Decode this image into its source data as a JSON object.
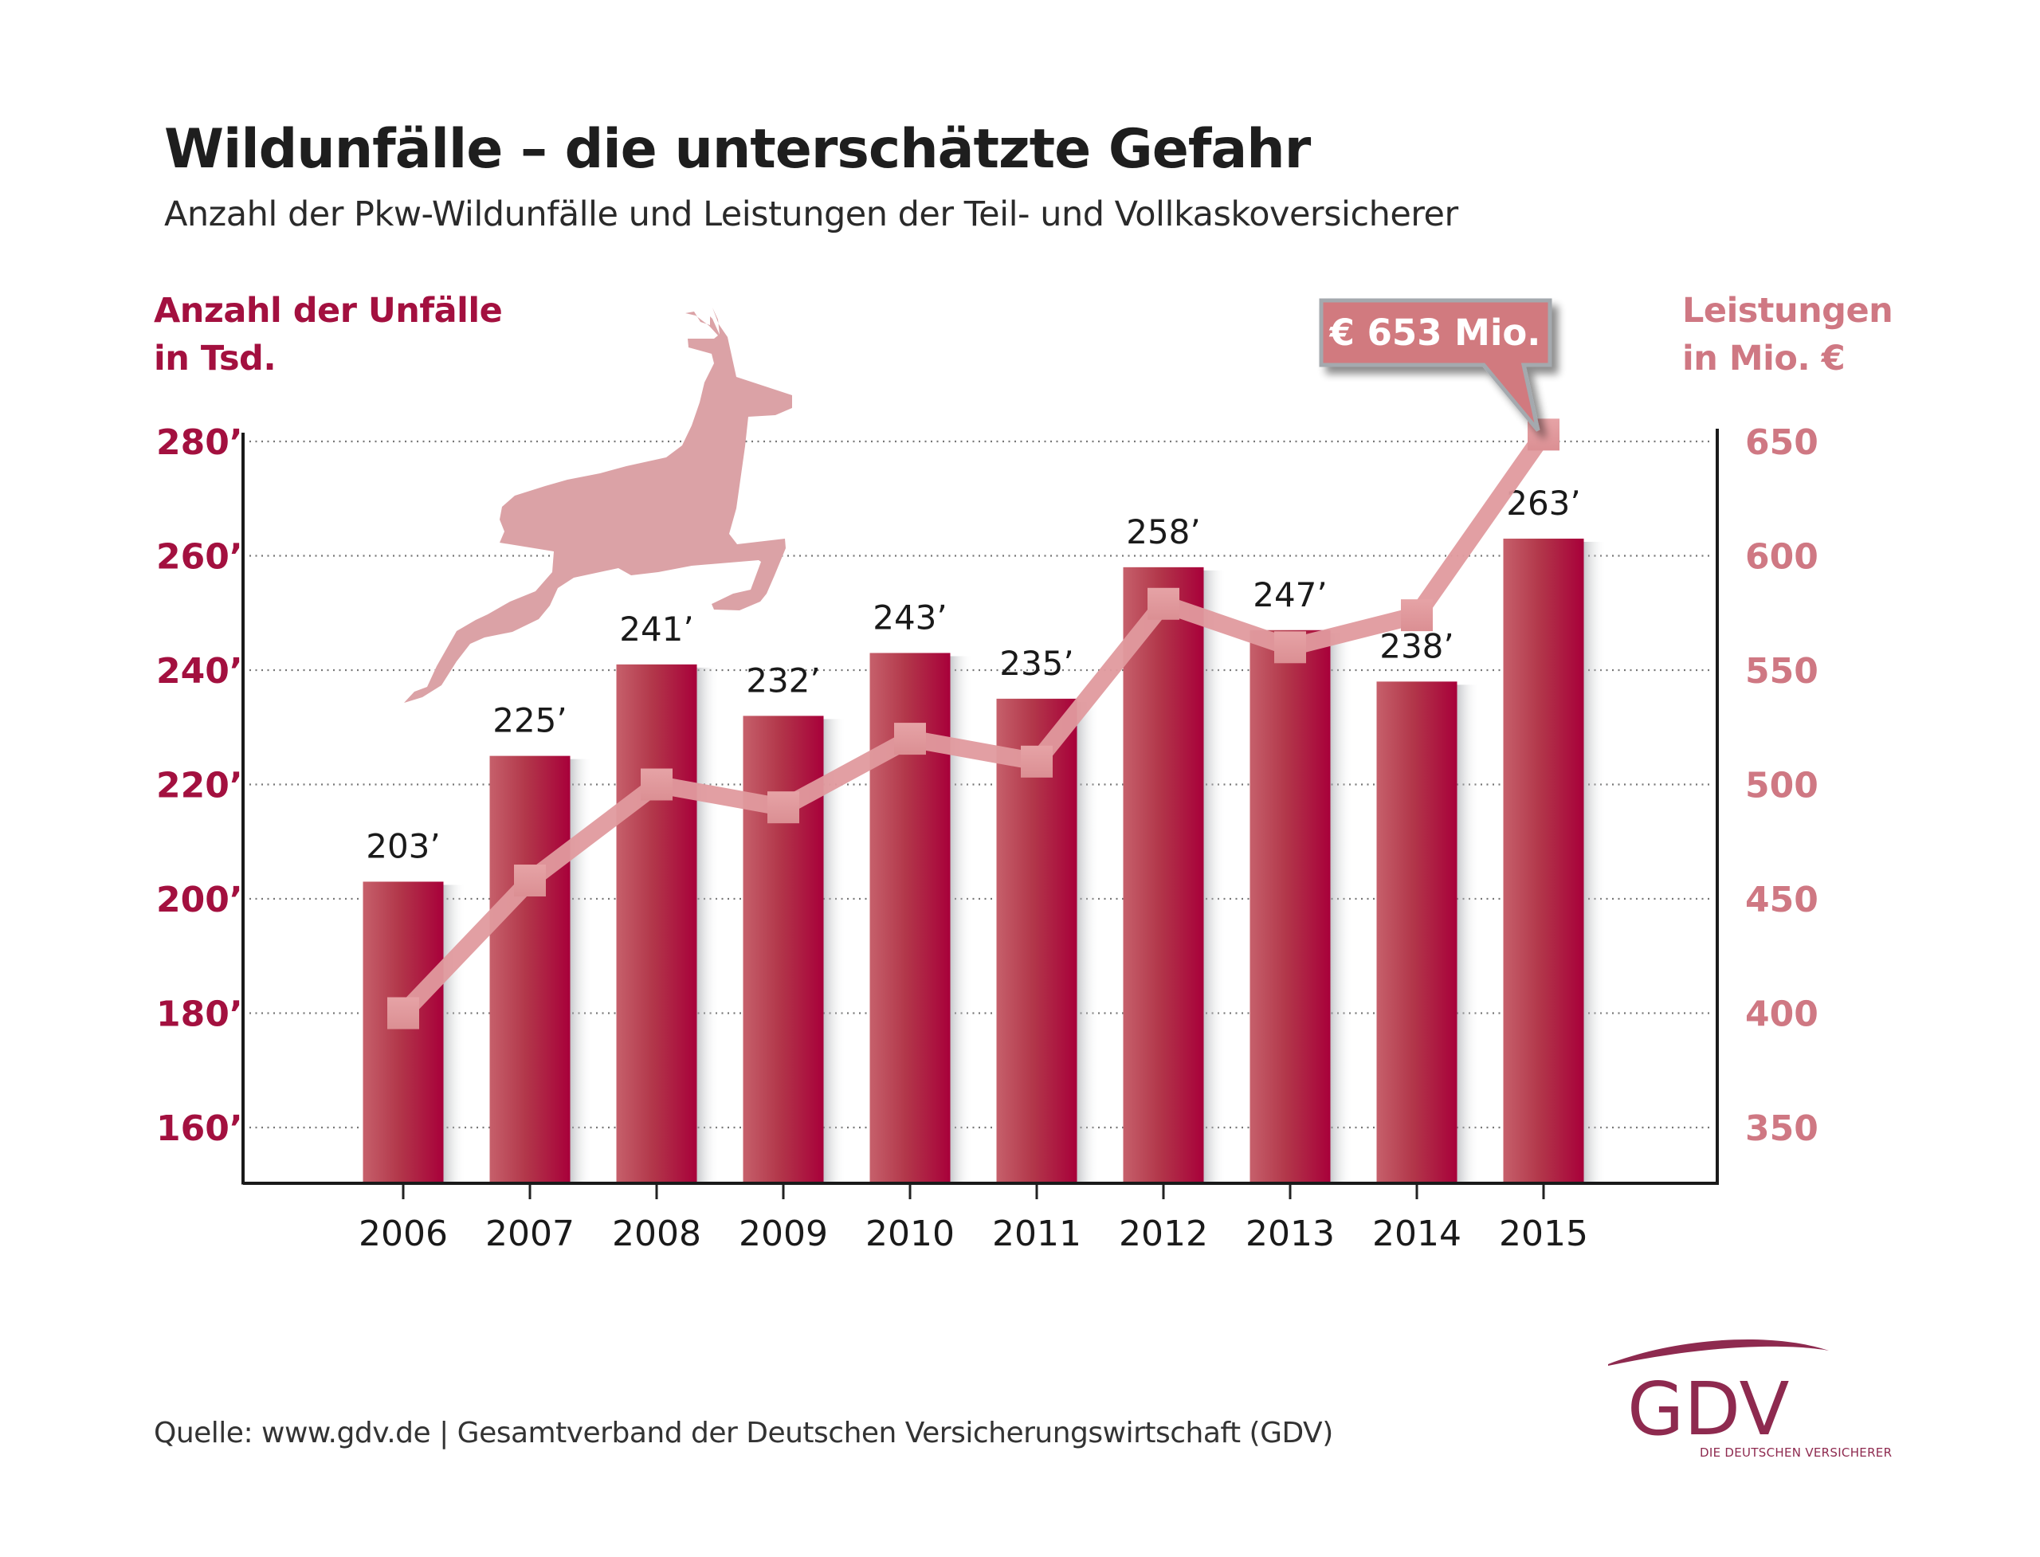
{
  "header": {
    "title": "Wildunfälle – die unterschätzte Gefahr",
    "subtitle": "Anzahl der Pkw-Wildunfälle und Leistungen der Teil- und Vollkaskoversicherer"
  },
  "axis_labels": {
    "left_line1": "Anzahl der Unfälle",
    "left_line2": "in Tsd.",
    "right_line1": "Leistungen",
    "right_line2": "in Mio. €"
  },
  "callout": {
    "text": "€ 653 Mio.",
    "year": "2015"
  },
  "source": "Quelle: www.gdv.de | Gesamtverband der Deutschen Versicherungswirtschaft (GDV)",
  "logo": {
    "name": "GDV",
    "tagline": "DIE DEUTSCHEN VERSICHERER"
  },
  "decoration": {
    "icon": "leaping-deer-icon"
  },
  "colors": {
    "bar_dark": "#a8003a",
    "bar_light": "#c6606b",
    "line": "#e09a9e",
    "left_axis_text": "#a3103f",
    "right_axis_text": "#cf7883",
    "callout_fill": "#d17a7f",
    "deer": "#dba2a6",
    "logo": "#8e2a4f"
  },
  "chart_data": {
    "type": "bar",
    "title": "Wildunfälle – die unterschätzte Gefahr",
    "subtitle": "Anzahl der Pkw-Wildunfälle und Leistungen der Teil- und Vollkaskoversicherer",
    "categories": [
      "2006",
      "2007",
      "2008",
      "2009",
      "2010",
      "2011",
      "2012",
      "2013",
      "2014",
      "2015"
    ],
    "series": [
      {
        "name": "Anzahl der Unfälle in Tsd.",
        "type": "bar",
        "axis": "left",
        "values": [
          203,
          225,
          241,
          232,
          243,
          235,
          258,
          247,
          238,
          263
        ],
        "labels": [
          "203’",
          "225’",
          "241’",
          "232’",
          "243’",
          "235’",
          "258’",
          "247’",
          "238’",
          "263’"
        ]
      },
      {
        "name": "Leistungen in Mio. €",
        "type": "line",
        "axis": "right",
        "values": [
          400,
          458,
          500,
          490,
          520,
          510,
          579,
          560,
          574,
          653
        ]
      }
    ],
    "y_left": {
      "label": "Anzahl der Unfälle in Tsd.",
      "ticks": [
        160,
        180,
        200,
        220,
        240,
        260,
        280
      ],
      "tick_labels": [
        "160’",
        "180’",
        "200’",
        "220’",
        "240’",
        "260’",
        "280’"
      ],
      "range": [
        150.2,
        281.5
      ]
    },
    "y_right": {
      "label": "Leistungen in Mio. €",
      "ticks": [
        350,
        400,
        450,
        500,
        550,
        600,
        650
      ],
      "tick_labels": [
        "350",
        "400",
        "450",
        "500",
        "550",
        "600",
        "650"
      ],
      "range": [
        325.5,
        653.8
      ]
    },
    "grid": "horizontal-dotted",
    "annotations": [
      "€ 653 Mio. (2015)"
    ]
  }
}
